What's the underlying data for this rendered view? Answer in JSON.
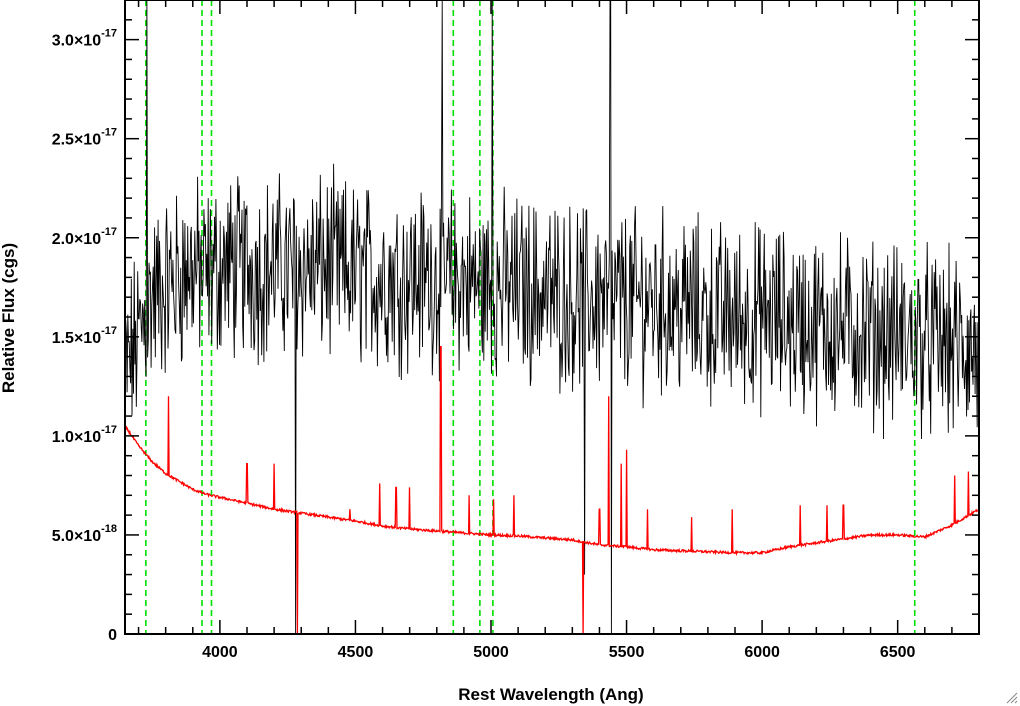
{
  "chart_data": {
    "type": "line",
    "title": "",
    "xlabel": "Rest Wavelength (Ang)",
    "ylabel": "Relative Flux (cgs)",
    "xlim": [
      3650,
      6800
    ],
    "ylim": [
      0,
      3.2e-17
    ],
    "x_ticks": [
      4000,
      4500,
      5000,
      5500,
      6000,
      6500
    ],
    "x_tick_labels": [
      "4000",
      "4500",
      "5000",
      "5500",
      "6000",
      "6500"
    ],
    "y_ticks": [
      {
        "value": 0,
        "mantissa": "0",
        "exponent": ""
      },
      {
        "value": 5e-18,
        "mantissa": "5.0×10",
        "exponent": "-18"
      },
      {
        "value": 1e-17,
        "mantissa": "1.0×10",
        "exponent": "-17"
      },
      {
        "value": 1.5e-17,
        "mantissa": "1.5×10",
        "exponent": "-17"
      },
      {
        "value": 2e-17,
        "mantissa": "2.0×10",
        "exponent": "-17"
      },
      {
        "value": 2.5e-17,
        "mantissa": "2.5×10",
        "exponent": "-17"
      },
      {
        "value": 3e-17,
        "mantissa": "3.0×10",
        "exponent": "-17"
      }
    ],
    "grid": false,
    "reference_lines": {
      "color": "#00e000",
      "style": "dashed",
      "x": [
        3727,
        3934,
        3969,
        4861,
        4959,
        5007,
        6563
      ]
    },
    "series": [
      {
        "color": "#000000",
        "style": "noisy spectrum",
        "x": [
          3650,
          3700,
          3750,
          3800,
          3850,
          3900,
          3950,
          4000,
          4100,
          4200,
          4300,
          4400,
          4500,
          4600,
          4700,
          4800,
          4900,
          5000,
          5100,
          5200,
          5300,
          5400,
          5500,
          5600,
          5700,
          5800,
          5900,
          6000,
          6100,
          6200,
          6300,
          6400,
          6500,
          6600,
          6700,
          6800
        ],
        "y": [
          1.3e-17,
          1.5e-17,
          1.7e-17,
          1.75e-17,
          1.8e-17,
          1.85e-17,
          1.8e-17,
          1.85e-17,
          1.85e-17,
          1.85e-17,
          1.85e-17,
          1.85e-17,
          1.82e-17,
          1.8e-17,
          1.8e-17,
          1.8e-17,
          1.78e-17,
          1.75e-17,
          1.75e-17,
          1.72e-17,
          1.7e-17,
          1.7e-17,
          1.68e-17,
          1.68e-17,
          1.65e-17,
          1.62e-17,
          1.6e-17,
          1.6e-17,
          1.58e-17,
          1.55e-17,
          1.55e-17,
          1.52e-17,
          1.5e-17,
          1.48e-17,
          1.45e-17,
          1.4e-17
        ],
        "features": [
          {
            "x": 3730,
            "y": 3.2e-17
          },
          {
            "x": 4280,
            "y": 0
          },
          {
            "x": 4820,
            "y": 3.2e-17
          },
          {
            "x": 5005,
            "y": 3.2e-17
          },
          {
            "x": 5345,
            "y": 3e-18
          },
          {
            "x": 5440,
            "y": 3.2e-17
          },
          {
            "x": 5445,
            "y": 0
          }
        ]
      },
      {
        "color": "#ff0000",
        "style": "error / sky spectrum",
        "x": [
          3650,
          3700,
          3750,
          3800,
          3850,
          3900,
          3950,
          4000,
          4100,
          4200,
          4300,
          4400,
          4500,
          4600,
          4700,
          4800,
          4900,
          5000,
          5100,
          5200,
          5300,
          5400,
          5500,
          5600,
          5700,
          5800,
          5900,
          6000,
          6100,
          6200,
          6300,
          6400,
          6500,
          6600,
          6700,
          6800
        ],
        "y": [
          1.05e-17,
          9.5e-18,
          8.7e-18,
          8.1e-18,
          7.7e-18,
          7.3e-18,
          7.05e-18,
          6.9e-18,
          6.6e-18,
          6.3e-18,
          6.1e-18,
          5.9e-18,
          5.7e-18,
          5.45e-18,
          5.3e-18,
          5.2e-18,
          5.1e-18,
          5e-18,
          4.95e-18,
          4.85e-18,
          4.75e-18,
          4.5e-18,
          4.4e-18,
          4.25e-18,
          4.2e-18,
          4.15e-18,
          4.1e-18,
          4.1e-18,
          4.4e-18,
          4.6e-18,
          4.8e-18,
          5e-18,
          5e-18,
          4.9e-18,
          5.5e-18,
          6.3e-18
        ],
        "features": [
          {
            "x": 3810,
            "y": 1.2e-17
          },
          {
            "x": 4100,
            "y": 8.6e-18
          },
          {
            "x": 4200,
            "y": 8.6e-18
          },
          {
            "x": 4285,
            "y": 0
          },
          {
            "x": 4480,
            "y": 6.3e-18
          },
          {
            "x": 4590,
            "y": 7.6e-18
          },
          {
            "x": 4650,
            "y": 7.4e-18
          },
          {
            "x": 4700,
            "y": 7.4e-18
          },
          {
            "x": 4815,
            "y": 1.45e-17
          },
          {
            "x": 4920,
            "y": 7e-18
          },
          {
            "x": 5010,
            "y": 6.8e-18
          },
          {
            "x": 5085,
            "y": 7e-18
          },
          {
            "x": 5340,
            "y": 0
          },
          {
            "x": 5400,
            "y": 6.3e-18
          },
          {
            "x": 5435,
            "y": 1.2e-17
          },
          {
            "x": 5480,
            "y": 8.6e-18
          },
          {
            "x": 5500,
            "y": 9.3e-18
          },
          {
            "x": 5577,
            "y": 6.3e-18
          },
          {
            "x": 5740,
            "y": 5.9e-18
          },
          {
            "x": 5890,
            "y": 6.3e-18
          },
          {
            "x": 6140,
            "y": 6.5e-18
          },
          {
            "x": 6240,
            "y": 6.5e-18
          },
          {
            "x": 6300,
            "y": 6.5e-18
          },
          {
            "x": 6710,
            "y": 8e-18
          },
          {
            "x": 6760,
            "y": 8.2e-18
          }
        ]
      }
    ]
  }
}
